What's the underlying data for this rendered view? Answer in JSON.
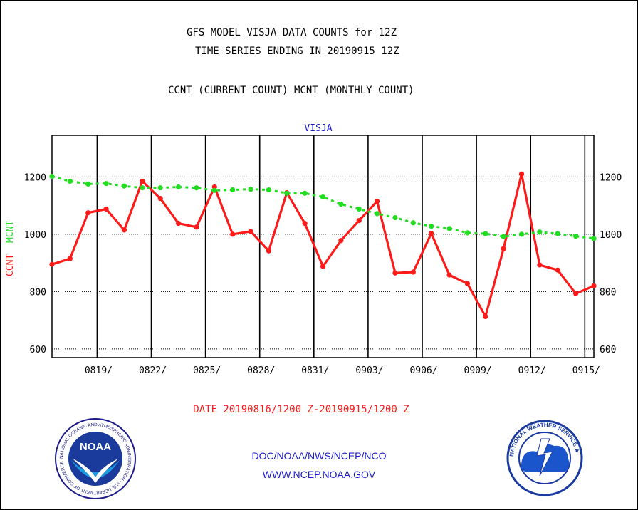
{
  "header": {
    "title_line1": "GFS MODEL VISJA DATA COUNTS for 12Z",
    "title_line2": "TIME SERIES ENDING IN 20190915 12Z",
    "subtitle": "CCNT (CURRENT COUNT) MCNT (MONTHLY COUNT)"
  },
  "chart_data": {
    "type": "line",
    "title": "VISJA",
    "ylabel_ccnt": "CCNT",
    "ylabel_mcnt": "MCNT",
    "ylim": [
      570,
      1345
    ],
    "yticks": [
      600,
      800,
      1000,
      1200
    ],
    "ytick_labels": [
      "600",
      "800",
      "1000",
      "1200"
    ],
    "xlim": [
      0,
      30
    ],
    "xtick_positions": [
      2.5,
      5.5,
      8.5,
      11.5,
      14.5,
      17.5,
      20.5,
      23.5,
      26.5,
      29.5
    ],
    "xtick_labels": [
      "0819/",
      "0822/",
      "0825/",
      "0828/",
      "0831/",
      "0903/",
      "0906/",
      "0909/",
      "0912/",
      "0915/"
    ],
    "grid": true,
    "xlabel": "DATE 20190816/1200 Z-20190915/1200 Z",
    "series": [
      {
        "name": "CCNT",
        "color": "#ff1a1a",
        "x": [
          0,
          1,
          2,
          3,
          4,
          5,
          6,
          7,
          8,
          9,
          10,
          11,
          12,
          13,
          14,
          15,
          16,
          17,
          18,
          19,
          20,
          21,
          22,
          23,
          24,
          25,
          26,
          27,
          28,
          29,
          30
        ],
        "values": [
          895,
          915,
          1075,
          1088,
          1015,
          1185,
          1125,
          1038,
          1025,
          1165,
          1000,
          1010,
          942,
          1145,
          1038,
          888,
          978,
          1048,
          1115,
          865,
          868,
          1003,
          858,
          828,
          713,
          950,
          1210,
          893,
          875,
          793,
          820
        ]
      },
      {
        "name": "MCNT",
        "color": "#22dd22",
        "x": [
          0,
          1,
          2,
          3,
          4,
          5,
          6,
          7,
          8,
          9,
          10,
          11,
          12,
          13,
          14,
          15,
          16,
          17,
          18,
          19,
          20,
          21,
          22,
          23,
          24,
          25,
          26,
          27,
          28,
          29,
          30
        ],
        "values": [
          1202,
          1185,
          1175,
          1177,
          1168,
          1162,
          1162,
          1165,
          1162,
          1153,
          1155,
          1157,
          1155,
          1143,
          1143,
          1130,
          1105,
          1088,
          1072,
          1058,
          1040,
          1028,
          1020,
          1005,
          1002,
          992,
          1000,
          1008,
          1002,
          993,
          985
        ]
      }
    ]
  },
  "footer": {
    "line1": "DOC/NOAA/NWS/NCEP/NCO",
    "line2": "WWW.NCEP.NOAA.GOV"
  },
  "logos": {
    "noaa_center": "NOAA",
    "noaa_ring": "NATIONAL OCEANIC AND ATMOSPHERIC ADMINISTRATION · U.S. DEPARTMENT OF COMMERCE ·",
    "nws_ring": "NATIONAL WEATHER SERVICE ★"
  }
}
